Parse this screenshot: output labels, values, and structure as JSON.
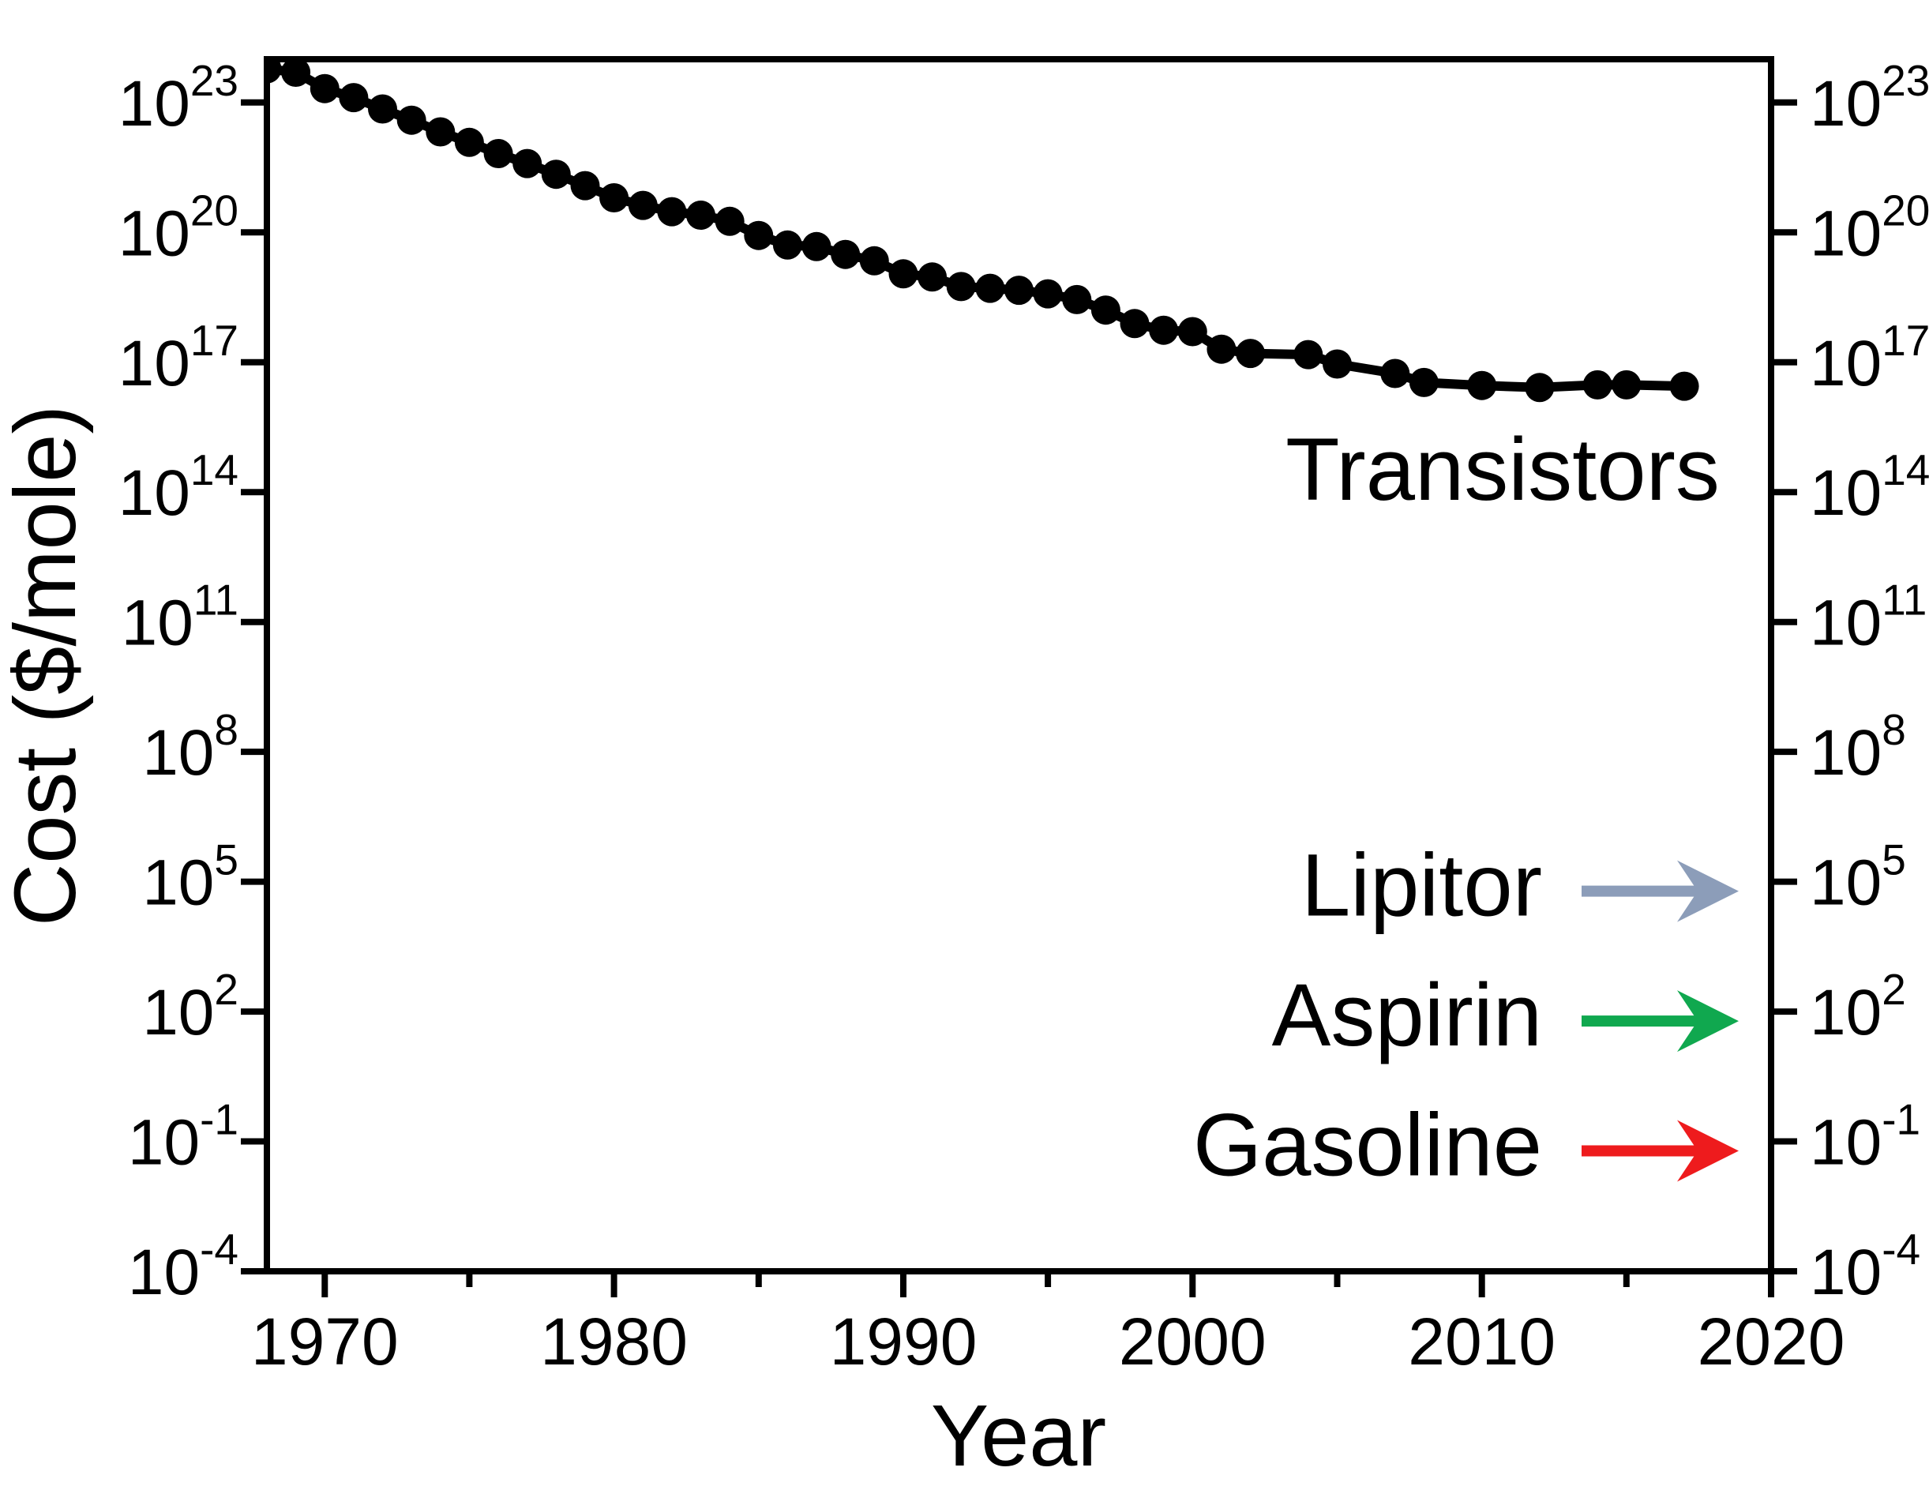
{
  "chart_data": {
    "type": "line",
    "title": "",
    "xlabel": "Year",
    "ylabel": "Cost ($/mole)",
    "grid": false,
    "x_axis": {
      "min": 1968,
      "max": 2020,
      "labeled_ticks": [
        1970,
        1980,
        1990,
        2000,
        2010,
        2020
      ],
      "minor_ticks": [
        1975,
        1985,
        1995,
        2005,
        2015
      ]
    },
    "y_axis": {
      "scale": "log",
      "top_exponent": 24,
      "bottom_exponent": -4,
      "labeled_exponents": [
        23,
        20,
        17,
        14,
        11,
        8,
        5,
        2,
        -1,
        -4
      ],
      "mirrored_right_axis": true
    },
    "series": [
      {
        "name": "Transistors",
        "color": "#000000",
        "marker": "circle",
        "points": [
          [
            1968,
            6e+23
          ],
          [
            1969,
            5e+23
          ],
          [
            1970,
            2.1e+23
          ],
          [
            1971,
            1.3e+23
          ],
          [
            1972,
            7.1e+22
          ],
          [
            1973,
            3.9e+22
          ],
          [
            1974,
            2.1e+22
          ],
          [
            1975,
            1.2e+22
          ],
          [
            1976,
            6.6e+21
          ],
          [
            1977,
            3.9e+21
          ],
          [
            1978,
            2.2e+21
          ],
          [
            1979,
            1.2e+21
          ],
          [
            1980,
            6.3e+20
          ],
          [
            1981,
            4.2e+20
          ],
          [
            1982,
            3e+20
          ],
          [
            1983,
            2.5e+20
          ],
          [
            1984,
            1.8e+20
          ],
          [
            1985,
            8.5e+19
          ],
          [
            1986,
            5.1e+19
          ],
          [
            1987,
            4.7e+19
          ],
          [
            1988,
            3.1e+19
          ],
          [
            1989,
            2.2e+19
          ],
          [
            1990,
            1.1e+19
          ],
          [
            1991,
            9.3e+18
          ],
          [
            1992,
            5.6e+18
          ],
          [
            1993,
            5.1e+18
          ],
          [
            1994,
            4.6e+18
          ],
          [
            1995,
            3.8e+18
          ],
          [
            1996,
            2.8e+18
          ],
          [
            1997,
            1.6e+18
          ],
          [
            1998,
            7.8e+17
          ],
          [
            1999,
            5.5e+17
          ],
          [
            2000,
            5.1e+17
          ],
          [
            2001,
            2e+17
          ],
          [
            2002,
            1.6e+17
          ],
          [
            2004,
            1.5e+17
          ],
          [
            2005,
            9.1e+16
          ],
          [
            2007,
            5.5e+16
          ],
          [
            2008,
            3.4e+16
          ],
          [
            2010,
            2.9e+16
          ],
          [
            2012,
            2.6e+16
          ],
          [
            2014,
            3e+16
          ],
          [
            2015,
            3e+16
          ],
          [
            2017,
            2.8e+16
          ]
        ]
      }
    ],
    "series_label": {
      "text": "Transistors",
      "color": "#000000"
    },
    "reference_arrows": [
      {
        "label": "Lipitor",
        "color": "#8C9DB9",
        "value": 100000.0
      },
      {
        "label": "Aspirin",
        "color": "#10A84F",
        "value": 100.0
      },
      {
        "label": "Gasoline",
        "color": "#EE1B1D",
        "value": 0.1
      }
    ]
  }
}
